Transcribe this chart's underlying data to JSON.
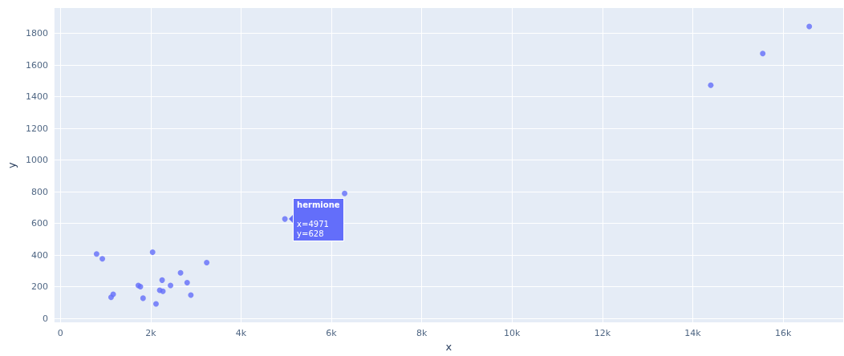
{
  "chart_data": {
    "type": "scatter",
    "xlabel": "x",
    "ylabel": "y",
    "x": [
      802,
      930,
      1123,
      1170,
      1726,
      1772,
      1831,
      2042,
      2118,
      2200,
      2270,
      2253,
      2439,
      2661,
      2807,
      2889,
      3240,
      4971,
      6293,
      14398,
      15549,
      16579
    ],
    "series": [
      {
        "color": "#636efa",
        "values": [
          407,
          377,
          134,
          153,
          208,
          201,
          128,
          418,
          92,
          178,
          172,
          242,
          208,
          288,
          226,
          148,
          353,
          628,
          789,
          1473,
          1673,
          1844
        ]
      }
    ],
    "xlim": [
      -130,
      17330
    ],
    "xticks": [
      0,
      {
        "value": 2000,
        "label": "2k"
      },
      {
        "value": 4000,
        "label": "4k"
      },
      {
        "value": 6000,
        "label": "6k"
      },
      {
        "value": 8000,
        "label": "8k"
      },
      {
        "value": 10000,
        "label": "10k"
      },
      {
        "value": 12000,
        "label": "12k"
      },
      {
        "value": 14000,
        "label": "14k"
      },
      {
        "value": 16000,
        "label": "16k"
      }
    ],
    "ylim": [
      -25,
      1960
    ],
    "yticks": [
      0,
      200,
      400,
      600,
      800,
      1000,
      1200,
      1400,
      1600,
      1800
    ],
    "grid": true,
    "marker": "circle",
    "annotations": [
      {
        "text": "hermione",
        "x": 4971,
        "y": 628
      },
      "x=4971",
      "y=628"
    ]
  }
}
